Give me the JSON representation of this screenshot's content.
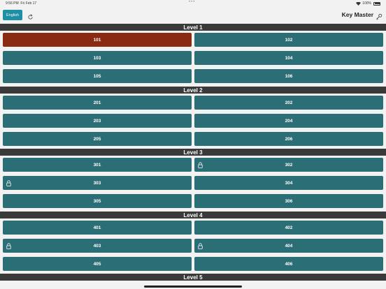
{
  "status_bar": {
    "time": "9:56 PM",
    "date": "Fri Feb 17",
    "battery": "100%"
  },
  "nav": {
    "language_button": "English",
    "title": "Key Master"
  },
  "levels": [
    {
      "title": "Level 1",
      "rooms": [
        {
          "number": "101",
          "active": true,
          "locked": false
        },
        {
          "number": "102",
          "active": false,
          "locked": false
        },
        {
          "number": "103",
          "active": false,
          "locked": false
        },
        {
          "number": "104",
          "active": false,
          "locked": false
        },
        {
          "number": "105",
          "active": false,
          "locked": false
        },
        {
          "number": "106",
          "active": false,
          "locked": false
        }
      ]
    },
    {
      "title": "Level 2",
      "rooms": [
        {
          "number": "201",
          "active": false,
          "locked": false
        },
        {
          "number": "202",
          "active": false,
          "locked": false
        },
        {
          "number": "203",
          "active": false,
          "locked": false
        },
        {
          "number": "204",
          "active": false,
          "locked": false
        },
        {
          "number": "205",
          "active": false,
          "locked": false
        },
        {
          "number": "206",
          "active": false,
          "locked": false
        }
      ]
    },
    {
      "title": "Level 3",
      "rooms": [
        {
          "number": "301",
          "active": false,
          "locked": false
        },
        {
          "number": "302",
          "active": false,
          "locked": true
        },
        {
          "number": "303",
          "active": false,
          "locked": true
        },
        {
          "number": "304",
          "active": false,
          "locked": false
        },
        {
          "number": "305",
          "active": false,
          "locked": false
        },
        {
          "number": "306",
          "active": false,
          "locked": false
        }
      ]
    },
    {
      "title": "Level 4",
      "rooms": [
        {
          "number": "401",
          "active": false,
          "locked": false
        },
        {
          "number": "402",
          "active": false,
          "locked": false
        },
        {
          "number": "403",
          "active": false,
          "locked": true
        },
        {
          "number": "404",
          "active": false,
          "locked": true
        },
        {
          "number": "405",
          "active": false,
          "locked": false
        },
        {
          "number": "406",
          "active": false,
          "locked": false
        }
      ]
    },
    {
      "title": "Level 5",
      "rooms": []
    }
  ],
  "colors": {
    "room": "#2c6e76",
    "active_room": "#8b2a12",
    "header": "#3a3a3a",
    "accent": "#1e8fa5"
  }
}
